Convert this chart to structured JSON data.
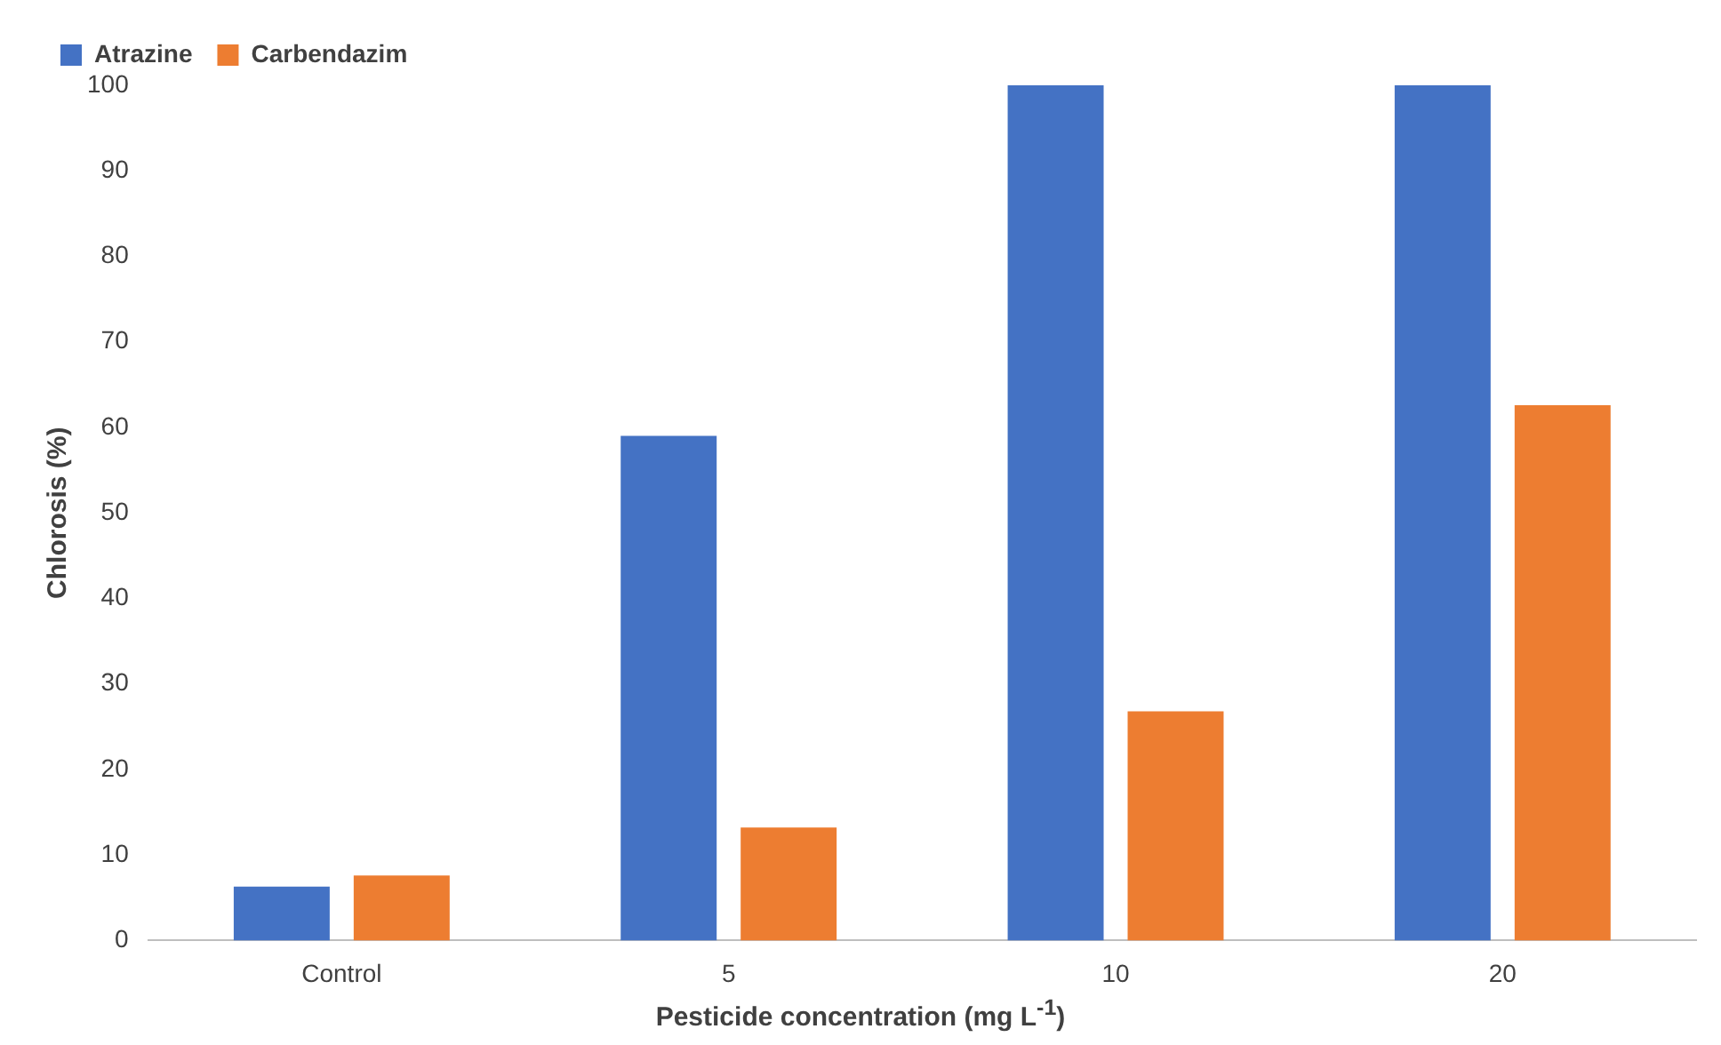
{
  "chart_data": {
    "type": "bar",
    "xlabel": "Pesticide concentration (mg L$^{-1}$)",
    "ylabel": "Chlorosis (%)",
    "categories": [
      "Control",
      "5",
      "10",
      "20"
    ],
    "series": [
      {
        "name": "Atrazine",
        "color": "#4472c4",
        "values": [
          6.3,
          59,
          100,
          100
        ]
      },
      {
        "name": "Carbendazim",
        "color": "#ed7d31",
        "values": [
          7.6,
          13.2,
          26.8,
          62.6
        ]
      }
    ],
    "ylim": [
      0,
      100
    ],
    "yticks": [
      0,
      10,
      20,
      30,
      40,
      50,
      60,
      70,
      80,
      90,
      100
    ],
    "grid": false,
    "legend": "top left"
  }
}
